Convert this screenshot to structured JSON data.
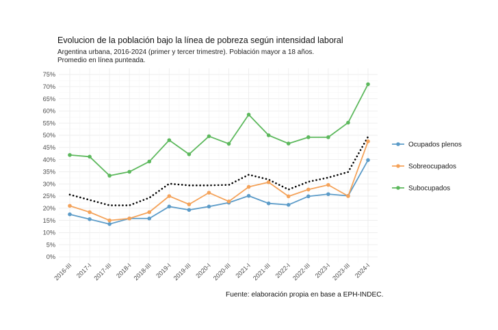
{
  "chart_data": {
    "type": "line",
    "title": "Evolucion de la población bajo la línea de pobreza según intensidad laboral",
    "subtitle": [
      "Argentina urbana, 2016-2024 (primer y tercer trimestre). Población mayor a 18 años.",
      "Promedio en línea punteada."
    ],
    "caption": "Fuente: elaboración propia en base a EPH-INDEC.",
    "xlabel": "",
    "ylabel": "",
    "ylim": [
      0,
      75
    ],
    "yticks": [
      0,
      5,
      10,
      15,
      20,
      25,
      30,
      35,
      40,
      45,
      50,
      55,
      60,
      65,
      70,
      75
    ],
    "ytick_labels": [
      "0%",
      "5%",
      "10%",
      "15%",
      "20%",
      "25%",
      "30%",
      "35%",
      "40%",
      "45%",
      "50%",
      "55%",
      "60%",
      "65%",
      "70%",
      "75%"
    ],
    "categories": [
      "2016-III",
      "2017-I",
      "2017-III",
      "2018-I",
      "2018-III",
      "2019-I",
      "2019-III",
      "2020-I",
      "2020-III",
      "2021-I",
      "2021-III",
      "2022-I",
      "2022-III",
      "2023-I",
      "2023-III",
      "2024-I"
    ],
    "series": [
      {
        "name": "Ocupados plenos",
        "color": "#5b9bc8",
        "values": [
          17.5,
          15.5,
          13.5,
          15.8,
          15.8,
          20.7,
          19.3,
          20.7,
          22.3,
          25.1,
          22.0,
          21.4,
          24.9,
          25.8,
          25.1,
          39.8
        ]
      },
      {
        "name": "Sobreocupados",
        "color": "#f4a259",
        "values": [
          21.0,
          18.4,
          15.0,
          15.8,
          18.4,
          25.0,
          21.6,
          26.4,
          22.8,
          28.8,
          30.7,
          24.9,
          27.7,
          29.6,
          25.0,
          47.5
        ]
      },
      {
        "name": "Subocupados",
        "color": "#5cb85c",
        "values": [
          41.9,
          41.2,
          33.4,
          35.0,
          39.2,
          48.0,
          42.2,
          49.6,
          46.5,
          58.5,
          50.0,
          46.6,
          49.2,
          49.2,
          55.2,
          71.0
        ]
      }
    ],
    "average": {
      "name": "Promedio",
      "color": "#000000",
      "style": "dotted",
      "values": [
        25.6,
        23.4,
        21.2,
        21.2,
        24.3,
        30.1,
        29.4,
        29.4,
        29.6,
        33.8,
        31.8,
        27.7,
        30.9,
        32.6,
        34.9,
        49.4
      ]
    },
    "legend": [
      "Ocupados plenos",
      "Sobreocupados",
      "Subocupados"
    ],
    "legend_position": "right",
    "grid": true
  }
}
